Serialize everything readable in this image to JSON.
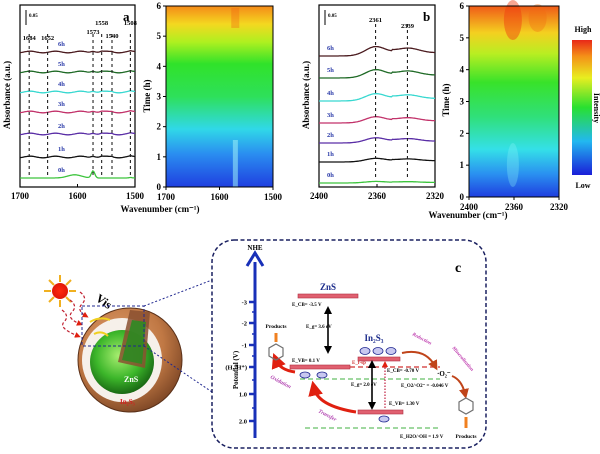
{
  "chart_data": [
    {
      "id": "a",
      "type": "line",
      "panel_label": "a",
      "title": "",
      "xlabel": "Wavenumber (cm⁻¹)",
      "ylabel": "Absorbance (a.u.)",
      "xlim": [
        1700,
        1500
      ],
      "x_ticks": [
        1700,
        1600,
        1500
      ],
      "scale_bar_label": "0.05",
      "peak_labels": [
        {
          "wavenumber": 1684,
          "label": "1684"
        },
        {
          "wavenumber": 1652,
          "label": "1652"
        },
        {
          "wavenumber": 1573,
          "label": "1573"
        },
        {
          "wavenumber": 1558,
          "label": "1558"
        },
        {
          "wavenumber": 1540,
          "label": "1540"
        },
        {
          "wavenumber": 1508,
          "label": "1508"
        }
      ],
      "series": [
        {
          "name": "0h",
          "color": "#3cc43c"
        },
        {
          "name": "1h",
          "color": "#111111"
        },
        {
          "name": "2h",
          "color": "#5a2ea6"
        },
        {
          "name": "3h",
          "color": "#c2326a"
        },
        {
          "name": "4h",
          "color": "#38d8d0"
        },
        {
          "name": "5h",
          "color": "#1f6a26"
        },
        {
          "name": "6h",
          "color": "#4a1a1e"
        }
      ]
    },
    {
      "id": "a-heatmap",
      "type": "heatmap",
      "xlabel": "Wavenumber (cm⁻¹)",
      "ylabel": "Time (h)",
      "xlim": [
        1700,
        1500
      ],
      "ylim": [
        0,
        6
      ],
      "x_ticks": [
        1700,
        1600,
        1500
      ],
      "y_ticks": [
        0,
        1,
        2,
        3,
        4,
        5,
        6
      ]
    },
    {
      "id": "b",
      "type": "line",
      "panel_label": "b",
      "xlabel": "Wavenumber (cm⁻¹)",
      "ylabel": "Absorbance (a.u.)",
      "xlim": [
        2400,
        2320
      ],
      "x_ticks": [
        2400,
        2360,
        2320
      ],
      "scale_bar_label": "0.05",
      "peak_labels": [
        {
          "wavenumber": 2361,
          "label": "2361"
        },
        {
          "wavenumber": 2339,
          "label": "2339"
        }
      ],
      "series": [
        {
          "name": "0h",
          "color": "#3cc43c"
        },
        {
          "name": "1h",
          "color": "#111111"
        },
        {
          "name": "2h",
          "color": "#5a2ea6"
        },
        {
          "name": "3h",
          "color": "#c2326a"
        },
        {
          "name": "4h",
          "color": "#38d8d0"
        },
        {
          "name": "5h",
          "color": "#1f6a26"
        },
        {
          "name": "6h",
          "color": "#4a1a1e"
        }
      ]
    },
    {
      "id": "b-heatmap",
      "type": "heatmap",
      "xlabel": "Wavenumber (cm⁻¹)",
      "ylabel": "Time (h)",
      "xlim": [
        2400,
        2320
      ],
      "ylim": [
        0,
        6
      ],
      "x_ticks": [
        2400,
        2360,
        2320
      ],
      "y_ticks": [
        0,
        1,
        2,
        3,
        4,
        5,
        6
      ],
      "colorbar": {
        "high_label": "High",
        "low_label": "Low",
        "title": "Intensity"
      }
    }
  ],
  "diagram_c": {
    "panel_label": "c",
    "light_label": "Vis",
    "core_label": "ZnS",
    "shell_label": "In₂S₃",
    "axis_title": "NHE",
    "axis_ylabel": "Potential (V)",
    "axis_ticks": [
      "-3",
      "-2",
      "-1",
      "(H₂/H⁺)",
      "1.0",
      "2.0"
    ],
    "zns_label": "ZnS",
    "zns_ecb": "Eₑ₂ = -3.5 V",
    "zns_ecb_text": "E_CB= -3.5 V",
    "zns_eg": "E_g= 3.6 eV",
    "zns_evb": "E_VB= 0.1 V",
    "in2s3_label": "In₂S₃",
    "in2s3_ecb": "E_CB= -0.70 V",
    "in2s3_eg": "E_g= 2.0 eV",
    "in2s3_evb": "E_VB= 1.30 V",
    "efermi": "E_f-sp",
    "o2_potential": "E_O2/·O2⁻ = -0.046 V",
    "oh_potential": "E_H2O/·OH = 1.9 V",
    "superoxide": "·O₂⁻",
    "electron": "e⁻",
    "hole": "h⁺",
    "products_left": "Products",
    "products_right": "Products",
    "oxidation": "Oxidation",
    "transfer": "Transfer",
    "reduction": "Reduction",
    "mineralization": "Mineralization"
  }
}
